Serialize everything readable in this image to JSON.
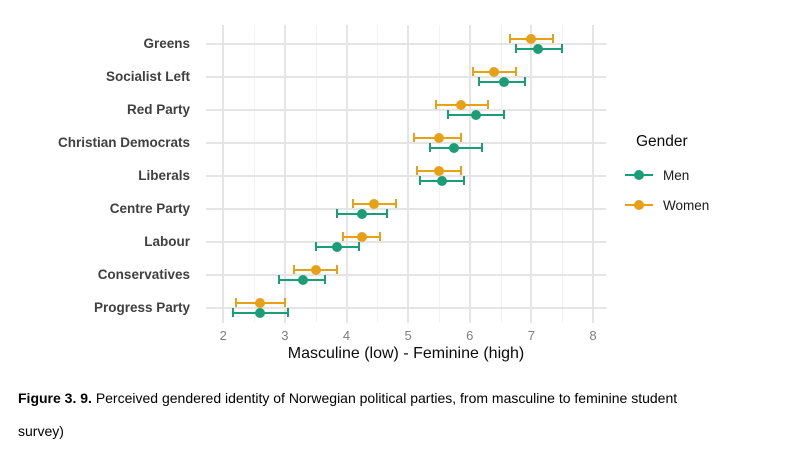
{
  "chart_data": {
    "type": "scatter",
    "subtype": "dot-plot-with-error-bars",
    "xlabel": "Masculine (low) - Feminine (high)",
    "x_ticks": [
      2,
      3,
      4,
      5,
      6,
      7,
      8
    ],
    "x_minor_ticks": [
      2.5,
      3.5,
      4.5,
      5.5,
      6.5,
      7.5
    ],
    "x_domain": [
      1.72,
      8.21
    ],
    "grid": "major and minor, light gray on white",
    "categories": [
      "Greens",
      "Socialist Left",
      "Red Party",
      "Christian Democrats",
      "Liberals",
      "Centre Party",
      "Labour",
      "Conservatives",
      "Progress Party"
    ],
    "series": [
      {
        "name": "Men",
        "color": "#1b9e77",
        "values": [
          7.1,
          6.55,
          6.1,
          5.75,
          5.55,
          4.25,
          3.85,
          3.3,
          2.6
        ],
        "ci_low": [
          6.75,
          6.15,
          5.65,
          5.35,
          5.2,
          3.85,
          3.5,
          2.9,
          2.15
        ],
        "ci_high": [
          7.5,
          6.9,
          6.55,
          6.2,
          5.9,
          4.65,
          4.2,
          3.65,
          3.05
        ]
      },
      {
        "name": "Women",
        "color": "#e6a117",
        "values": [
          7.0,
          6.4,
          5.85,
          5.5,
          5.5,
          4.45,
          4.25,
          3.5,
          2.6
        ],
        "ci_low": [
          6.65,
          6.05,
          5.45,
          5.1,
          5.15,
          4.1,
          3.95,
          3.15,
          2.2
        ],
        "ci_high": [
          7.35,
          6.75,
          6.3,
          5.85,
          5.85,
          4.8,
          4.55,
          3.85,
          3.0
        ]
      }
    ],
    "legend": {
      "title": "Gender",
      "position": "right",
      "entries": [
        {
          "name": "Men",
          "color": "#1b9e77"
        },
        {
          "name": "Women",
          "color": "#e6a117"
        }
      ]
    }
  },
  "caption": {
    "label": "Figure 3. 9.",
    "line1": "Perceived gendered identity of Norwegian political parties, from masculine to feminine student",
    "line2": "survey)"
  }
}
